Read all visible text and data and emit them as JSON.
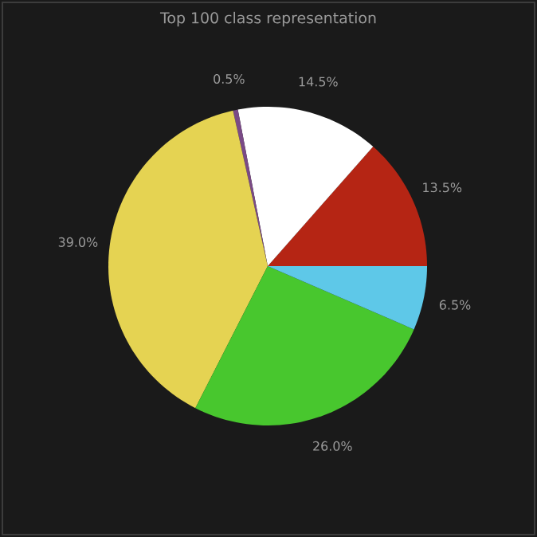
{
  "chart_data": {
    "type": "pie",
    "title": "Top 100 class representation",
    "categories": [
      null,
      null,
      null,
      null,
      null,
      null
    ],
    "values": [
      13.5,
      14.5,
      0.5,
      39.0,
      26.0,
      6.5
    ],
    "colors": [
      "#b52514",
      "#ffffff",
      "#7a4a86",
      "#e5d352",
      "#48c72e",
      "#5ec8e8"
    ],
    "value_labels": [
      "13.5%",
      "14.5%",
      "0.5%",
      "39.0%",
      "26.0%",
      "6.5%"
    ]
  }
}
